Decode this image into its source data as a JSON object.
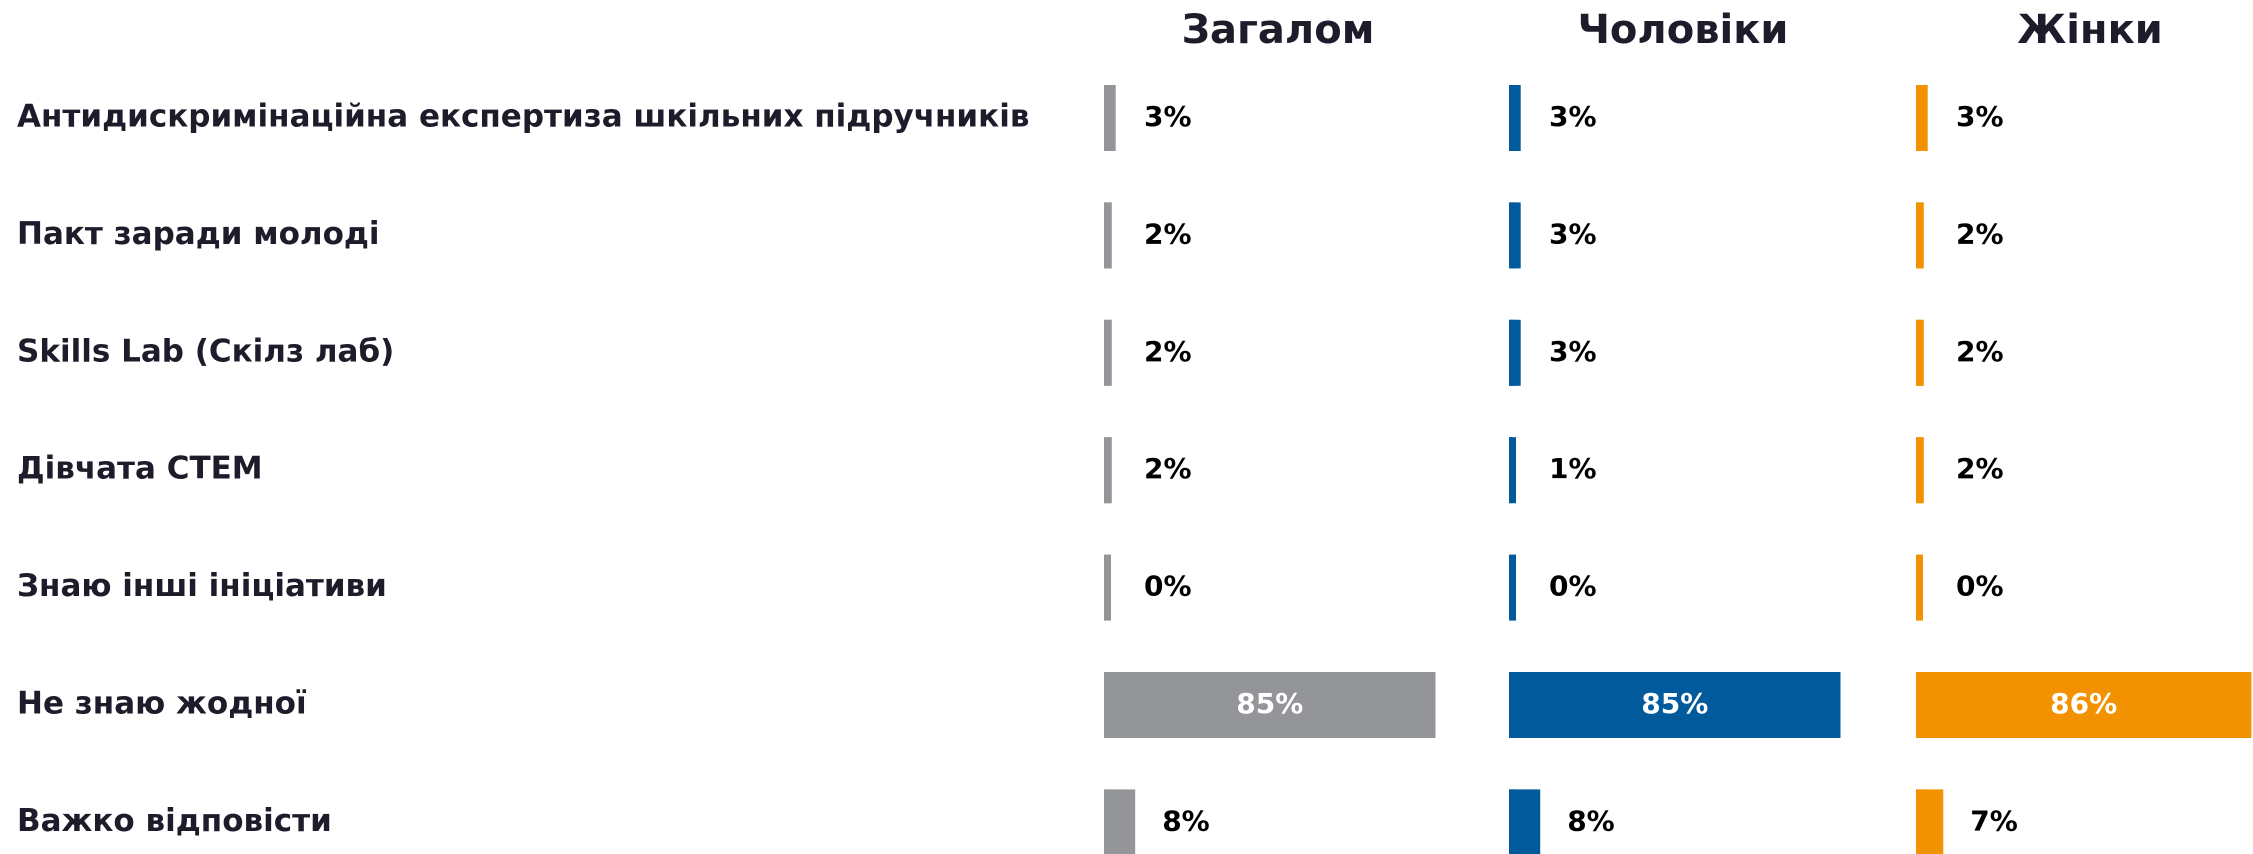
{
  "chart_data": {
    "type": "bar",
    "categories": [
      "Антидискримінаційна експертиза шкільних підручників",
      "Пакт заради молоді",
      "Skills Lab (Скілз лаб)",
      "Дівчата СТЕМ",
      "Знаю інші ініціативи",
      "Не знаю жодної",
      "Важко відповісти"
    ],
    "series": [
      {
        "name": "Загалом",
        "color": "#939598",
        "values": [
          3,
          2,
          2,
          2,
          0,
          85,
          8
        ],
        "value_labels": [
          "3%",
          "2%",
          "2%",
          "2%",
          "0%",
          "85%",
          "8%"
        ]
      },
      {
        "name": "Чоловіки",
        "color": "#005a9b",
        "values": [
          3,
          3,
          3,
          1,
          0,
          85,
          8
        ],
        "value_labels": [
          "3%",
          "3%",
          "3%",
          "1%",
          "0%",
          "85%",
          "8%"
        ]
      },
      {
        "name": "Жінки",
        "color": "#f39200",
        "values": [
          3,
          2,
          2,
          2,
          0,
          86,
          7
        ],
        "value_labels": [
          "3%",
          "2%",
          "2%",
          "2%",
          "0%",
          "86%",
          "7%"
        ]
      }
    ]
  }
}
